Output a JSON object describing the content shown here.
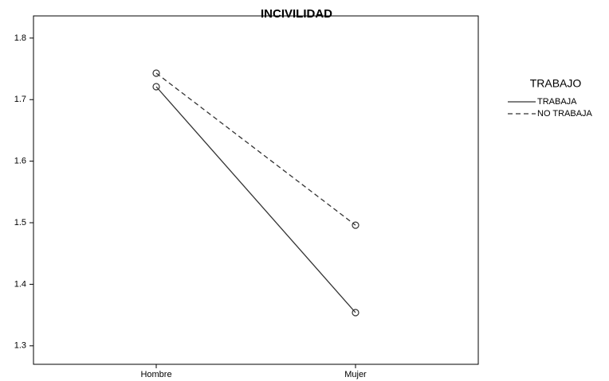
{
  "chart_data": {
    "type": "line",
    "title": "INCIVILIDAD",
    "categories": [
      "Hombre",
      "Mujer"
    ],
    "series": [
      {
        "name": "TRABAJA",
        "color": "#333333",
        "dash": "none",
        "values": [
          1.721,
          1.354
        ]
      },
      {
        "name": "NO TRABAJA",
        "color": "#333333",
        "dash": "6,4",
        "values": [
          1.743,
          1.496
        ]
      }
    ],
    "legend_title": "TRABAJO",
    "ylim": [
      1.27,
      1.836
    ],
    "yticks": [
      1.3,
      1.4,
      1.5,
      1.6,
      1.7,
      1.8
    ]
  }
}
